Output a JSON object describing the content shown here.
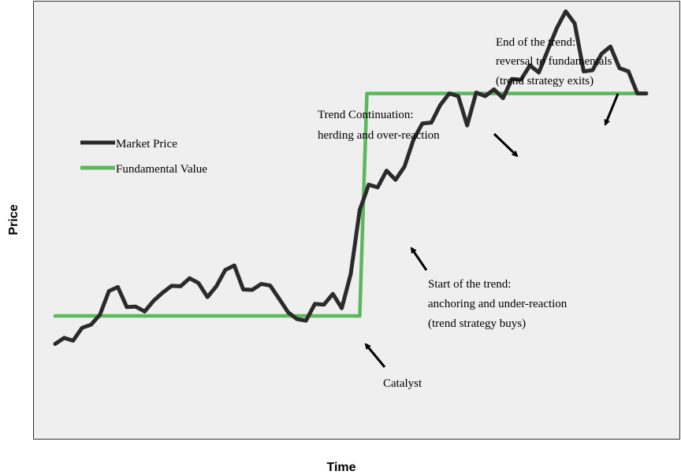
{
  "chart_data": {
    "type": "line",
    "xlabel": "Time",
    "ylabel": "Price",
    "xlim": [
      0,
      66
    ],
    "ylim": [
      0,
      100
    ],
    "grid": false,
    "legend_position": "upper-left",
    "series": [
      {
        "name": "Market Price",
        "color": "#2b2b2b",
        "x": [
          0,
          1,
          2,
          3,
          4,
          5,
          6,
          7,
          8,
          9,
          10,
          11,
          12,
          13,
          14,
          15,
          16,
          17,
          18,
          19,
          20,
          21,
          22,
          23,
          24,
          25,
          26,
          27,
          28,
          29,
          30,
          31,
          32,
          33,
          34,
          34.5,
          35,
          36,
          37,
          38,
          39,
          40,
          41,
          42,
          43,
          44,
          45,
          46,
          47,
          48,
          49,
          50,
          51,
          52,
          53,
          54,
          55,
          56,
          57,
          58,
          59,
          60,
          61,
          62,
          63,
          64,
          65,
          66
        ],
        "values": [
          18,
          19.5,
          18.8,
          22,
          22.8,
          25.3,
          31.2,
          32.2,
          27.2,
          27.3,
          26.1,
          28.8,
          30.8,
          32.5,
          32.4,
          34.4,
          33.2,
          29.7,
          32.4,
          36.5,
          37.6,
          31.6,
          31.5,
          33,
          32.6,
          29.3,
          25.9,
          24.2,
          23.8,
          28,
          27.8,
          30.5,
          26.9,
          35.5,
          51.5,
          54.5,
          57.8,
          57.1,
          61.3,
          59,
          62.3,
          69,
          73.1,
          73.3,
          77.7,
          80.6,
          79.9,
          72.6,
          80.8,
          79.9,
          81.6,
          79.4,
          84.2,
          84,
          87.6,
          85.8,
          91.4,
          96.9,
          101.1,
          98.1,
          86.1,
          86.4,
          90.5,
          92.3,
          86.9,
          86.1,
          80.6,
          80.6
        ]
      },
      {
        "name": "Fundamental Value",
        "color": "#5cb85c",
        "x": [
          0,
          34,
          34.8,
          66
        ],
        "values": [
          25,
          25,
          80.6,
          80.6
        ]
      }
    ],
    "annotations": [
      {
        "id": "catalyst",
        "lines": [
          "Catalyst"
        ]
      },
      {
        "id": "start",
        "lines": [
          "Start of the trend:",
          "anchoring and under-reaction",
          "(trend strategy buys)"
        ]
      },
      {
        "id": "continuation",
        "lines": [
          "Trend Continuation:",
          "herding and over-reaction"
        ]
      },
      {
        "id": "end",
        "lines": [
          "End of the trend:",
          "reversal to fundamentals",
          "(trend strategy exits)"
        ]
      }
    ]
  }
}
